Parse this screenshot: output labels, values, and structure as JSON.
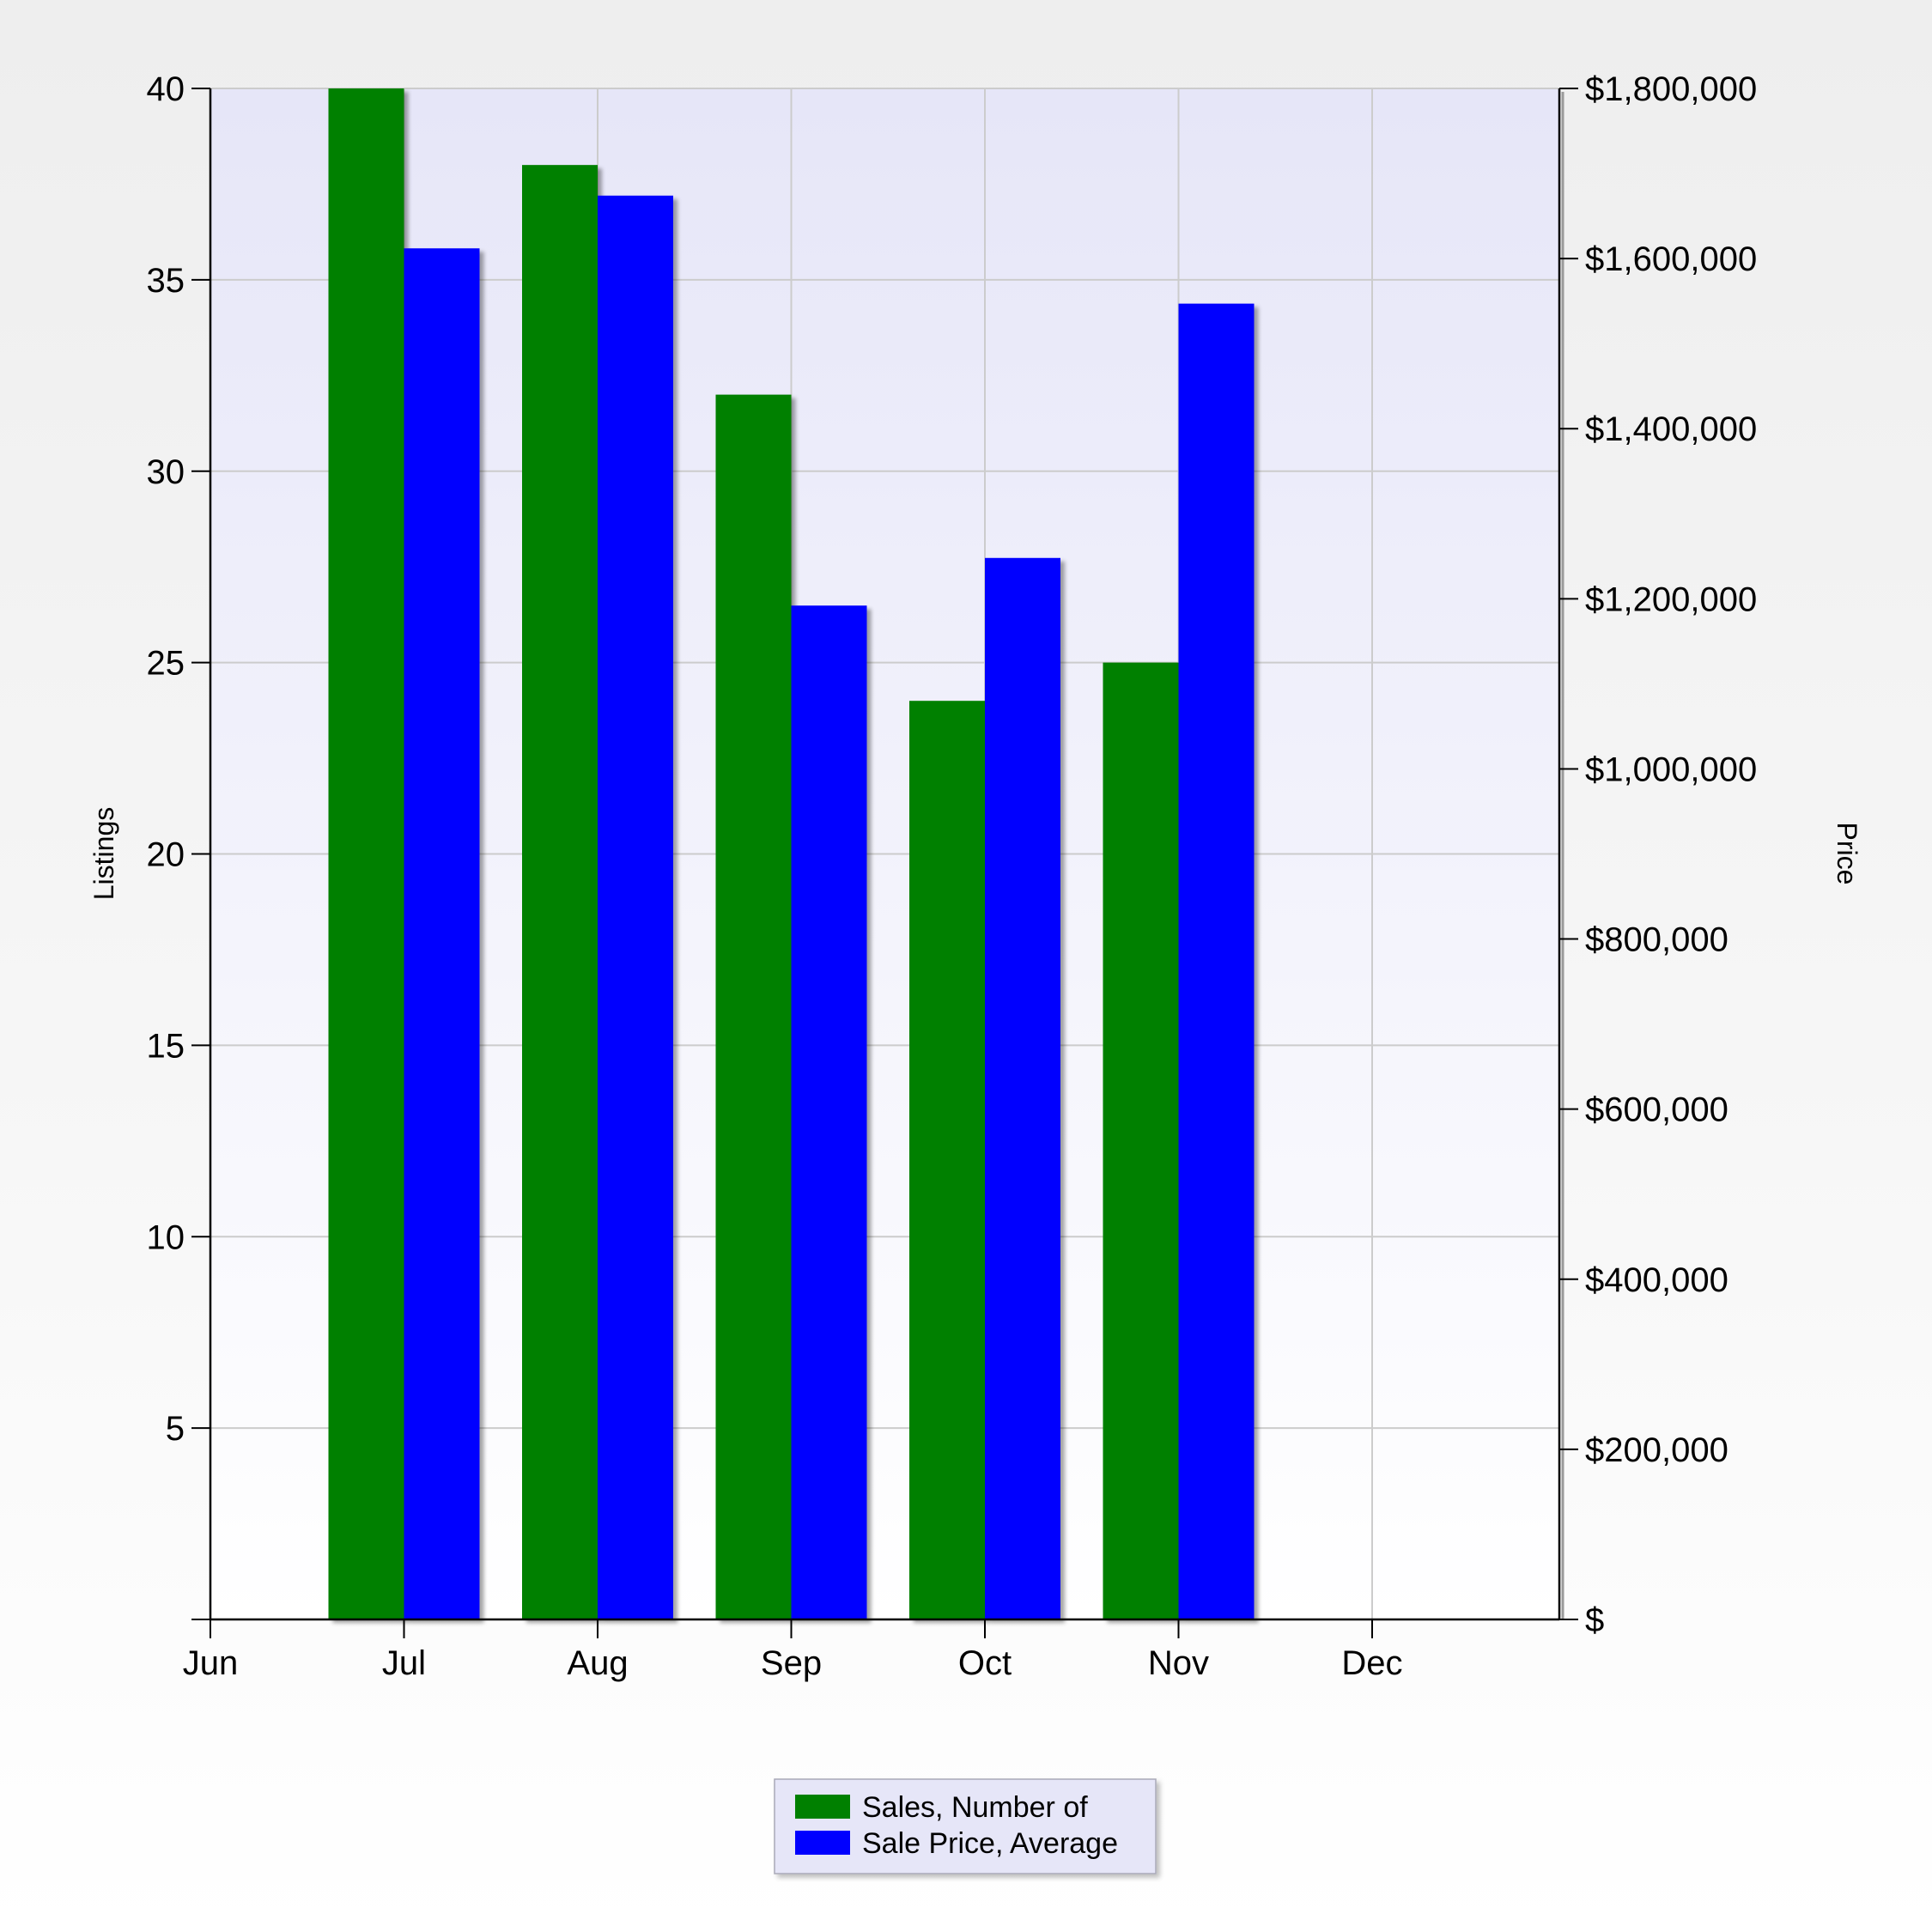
{
  "chart_data": {
    "type": "bar",
    "x_ticks": [
      "Jun",
      "Jul",
      "Aug",
      "Sep",
      "Oct",
      "Nov",
      "Dec"
    ],
    "categories": [
      "Jul",
      "Aug",
      "Sep",
      "Oct",
      "Nov"
    ],
    "series": [
      {
        "name": "Sales, Number of",
        "axis": "left",
        "color": "#008000",
        "values": [
          40,
          38,
          32,
          24,
          25
        ]
      },
      {
        "name": "Sale Price, Average",
        "axis": "right",
        "color": "#0000ff",
        "values": [
          1612000,
          1674000,
          1192000,
          1248000,
          1547000
        ]
      }
    ],
    "y_left": {
      "label": "Listings",
      "min": 0,
      "max": 40,
      "ticks": [
        5,
        10,
        15,
        20,
        25,
        30,
        35,
        40
      ],
      "tick_labels": [
        "5",
        "10",
        "15",
        "20",
        "25",
        "30",
        "35",
        "40"
      ]
    },
    "y_right": {
      "label": "Price",
      "min": 0,
      "max": 1800000,
      "ticks": [
        0,
        200000,
        400000,
        600000,
        800000,
        1000000,
        1200000,
        1400000,
        1600000,
        1800000
      ],
      "tick_labels": [
        "$",
        "$200,000",
        "$400,000",
        "$600,000",
        "$800,000",
        "$1,000,000",
        "$1,200,000",
        "$1,400,000",
        "$1,600,000",
        "$1,800,000"
      ]
    },
    "grid": true,
    "legend_position": "bottom-center",
    "colors": {
      "plot_top": "#e6e6f8",
      "plot_bottom": "#ffffff",
      "grid": "#cccccc",
      "legend_bg": "#e6e6f8"
    }
  }
}
